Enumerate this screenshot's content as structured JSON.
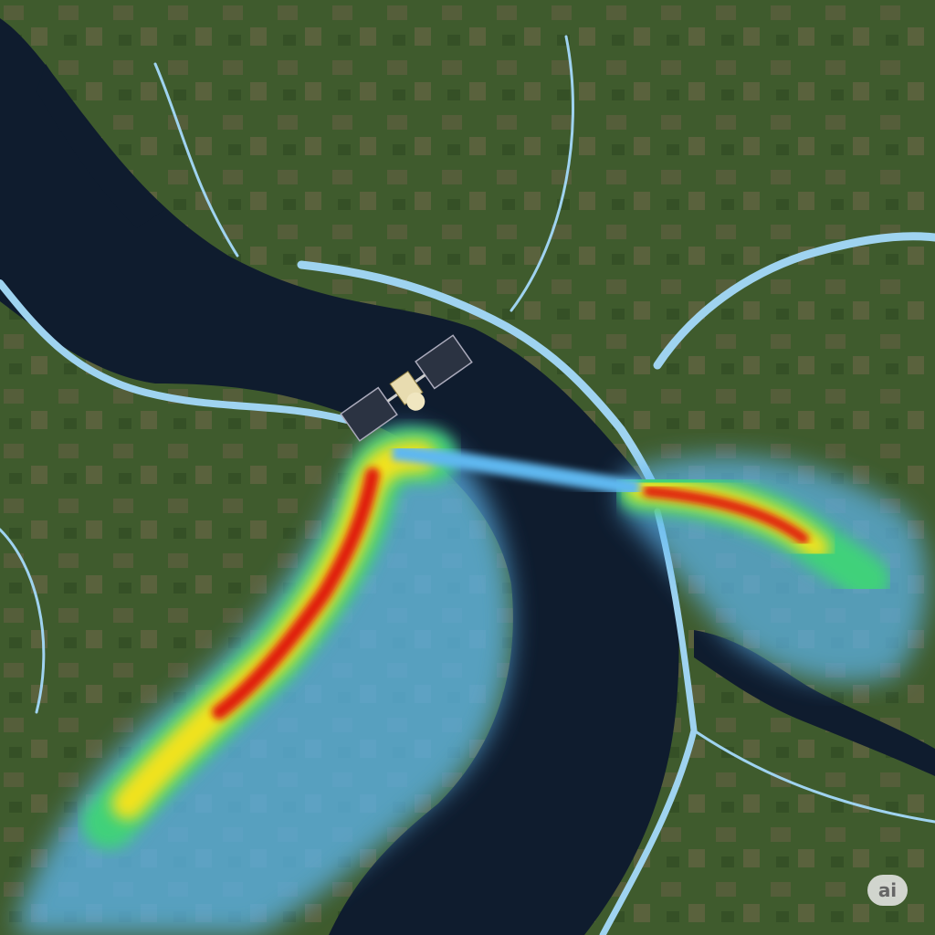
{
  "watermark": {
    "text": "ai"
  },
  "colors": {
    "land": "#3e5a2c",
    "land_brown": "#7a6a50",
    "water": "#0f1c2e",
    "river": "#9fd3f0",
    "plume_low": "#5fb8f0",
    "plume_mid": "#f2e21b",
    "plume_high": "#e01b10"
  },
  "icons": [
    "satellite-icon"
  ]
}
